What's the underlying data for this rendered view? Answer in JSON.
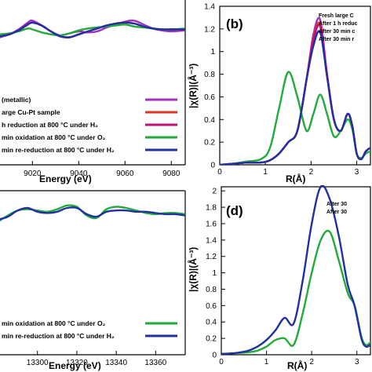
{
  "chart_data": [
    {
      "panel": "a",
      "type": "line",
      "xlabel": "Energy (eV)",
      "x_ticks": [
        9020,
        9040,
        9060,
        9080
      ],
      "xlim": [
        9006,
        9086
      ],
      "ylim": [
        0,
        1.6
      ],
      "legend_position": "bottom-right",
      "legend": [
        {
          "label": "(metallic)",
          "color": "#a030c0"
        },
        {
          "label": "arge Cu-Pt sample",
          "color": "#e0301e"
        },
        {
          "label": "h reduction at 800 °C under H₂",
          "color": "#c01078"
        },
        {
          "label": "min oxidation at 800 °C under O₂",
          "color": "#22aa3a"
        },
        {
          "label": "min re-reduction at 800 °C under H₂",
          "color": "#2030a0"
        }
      ],
      "series": [
        {
          "color": "#a030c0",
          "x": [
            9006,
            9010,
            9014,
            9018,
            9020,
            9024,
            9028,
            9032,
            9036,
            9040,
            9044,
            9048,
            9052,
            9056,
            9060,
            9064,
            9068,
            9072,
            9076,
            9080,
            9086
          ],
          "y": [
            1.3,
            1.33,
            1.38,
            1.45,
            1.47,
            1.42,
            1.36,
            1.32,
            1.34,
            1.36,
            1.35,
            1.36,
            1.4,
            1.43,
            1.46,
            1.47,
            1.43,
            1.39,
            1.37,
            1.36,
            1.37
          ]
        },
        {
          "color": "#e0301e",
          "x": [
            9006,
            9010,
            9014,
            9018,
            9020,
            9024,
            9028,
            9032,
            9036,
            9040,
            9044,
            9048,
            9052,
            9056,
            9060,
            9064,
            9068,
            9072,
            9076,
            9080,
            9086
          ],
          "y": [
            1.31,
            1.33,
            1.37,
            1.43,
            1.45,
            1.42,
            1.36,
            1.31,
            1.3,
            1.33,
            1.36,
            1.39,
            1.42,
            1.44,
            1.45,
            1.44,
            1.41,
            1.39,
            1.38,
            1.38,
            1.38
          ]
        },
        {
          "color": "#c01078",
          "x": [
            9006,
            9010,
            9014,
            9018,
            9020,
            9024,
            9028,
            9032,
            9036,
            9040,
            9044,
            9048,
            9052,
            9056,
            9060,
            9064,
            9068,
            9072,
            9076,
            9080,
            9086
          ],
          "y": [
            1.31,
            1.33,
            1.37,
            1.43,
            1.45,
            1.42,
            1.36,
            1.31,
            1.3,
            1.33,
            1.36,
            1.39,
            1.42,
            1.44,
            1.45,
            1.44,
            1.41,
            1.39,
            1.38,
            1.38,
            1.38
          ]
        },
        {
          "color": "#22aa3a",
          "x": [
            9006,
            9010,
            9014,
            9018,
            9020,
            9024,
            9028,
            9032,
            9036,
            9040,
            9044,
            9048,
            9052,
            9056,
            9060,
            9064,
            9068,
            9072,
            9076,
            9080,
            9086
          ],
          "y": [
            1.33,
            1.34,
            1.36,
            1.39,
            1.38,
            1.35,
            1.33,
            1.32,
            1.34,
            1.37,
            1.39,
            1.4,
            1.41,
            1.42,
            1.43,
            1.41,
            1.4,
            1.39,
            1.38,
            1.38,
            1.39
          ]
        },
        {
          "color": "#2030a0",
          "x": [
            9006,
            9010,
            9014,
            9018,
            9020,
            9024,
            9028,
            9032,
            9036,
            9040,
            9044,
            9048,
            9052,
            9056,
            9060,
            9064,
            9068,
            9072,
            9076,
            9080,
            9086
          ],
          "y": [
            1.31,
            1.33,
            1.37,
            1.43,
            1.45,
            1.42,
            1.36,
            1.31,
            1.3,
            1.33,
            1.36,
            1.39,
            1.42,
            1.44,
            1.45,
            1.44,
            1.41,
            1.39,
            1.38,
            1.38,
            1.38
          ]
        }
      ]
    },
    {
      "panel": "b",
      "type": "line",
      "label": "(b)",
      "xlabel": "R(Å)",
      "ylabel": "|χ(R)|(Å⁻³)",
      "x_ticks": [
        "0",
        "1",
        "2",
        "3"
      ],
      "x_tick_values": [
        0,
        1,
        2,
        3
      ],
      "y_ticks": [
        "0",
        "0.2",
        "0.4",
        "0.6",
        "0.8",
        "1",
        "1.2",
        "1.4"
      ],
      "y_tick_values": [
        0,
        0.2,
        0.4,
        0.6,
        0.8,
        1.0,
        1.2,
        1.4
      ],
      "xlim": [
        0,
        3.3
      ],
      "ylim": [
        0,
        1.4
      ],
      "legend_position": "top-right",
      "legend": [
        "Fresh large C",
        "After 1 h reduc",
        "After 30 min c",
        "After 30 min r"
      ],
      "series": [
        {
          "color": "#a030c0",
          "x": [
            0,
            0.3,
            0.6,
            0.9,
            1.1,
            1.3,
            1.5,
            1.7,
            1.9,
            2.05,
            2.2,
            2.35,
            2.5,
            2.65,
            2.8,
            2.9,
            3.0,
            3.1,
            3.2,
            3.3
          ],
          "y": [
            0,
            0.01,
            0.02,
            0.02,
            0.04,
            0.1,
            0.2,
            0.3,
            0.75,
            1.15,
            1.28,
            0.8,
            0.4,
            0.3,
            0.45,
            0.35,
            0.1,
            0.05,
            0.12,
            0.15
          ]
        },
        {
          "color": "#e0301e",
          "x": [
            0,
            0.3,
            0.6,
            0.9,
            1.1,
            1.3,
            1.5,
            1.7,
            1.9,
            2.05,
            2.2,
            2.35,
            2.5,
            2.65,
            2.8,
            2.9,
            3.0,
            3.1,
            3.2,
            3.3
          ],
          "y": [
            0,
            0.01,
            0.02,
            0.02,
            0.04,
            0.1,
            0.2,
            0.3,
            0.75,
            1.12,
            1.24,
            0.8,
            0.4,
            0.3,
            0.45,
            0.35,
            0.1,
            0.05,
            0.12,
            0.15
          ]
        },
        {
          "color": "#c01078",
          "x": [
            0,
            0.3,
            0.6,
            0.9,
            1.1,
            1.3,
            1.5,
            1.7,
            1.9,
            2.05,
            2.2,
            2.35,
            2.5,
            2.65,
            2.8,
            2.9,
            3.0,
            3.1,
            3.2,
            3.3
          ],
          "y": [
            0,
            0.01,
            0.02,
            0.02,
            0.04,
            0.1,
            0.2,
            0.3,
            0.75,
            1.1,
            1.22,
            0.8,
            0.4,
            0.3,
            0.45,
            0.35,
            0.1,
            0.05,
            0.12,
            0.15
          ]
        },
        {
          "color": "#22aa3a",
          "x": [
            0,
            0.3,
            0.6,
            0.9,
            1.1,
            1.3,
            1.5,
            1.7,
            1.9,
            2.05,
            2.2,
            2.35,
            2.5,
            2.65,
            2.8,
            2.9,
            3.0,
            3.1,
            3.2,
            3.3
          ],
          "y": [
            0,
            0.01,
            0.03,
            0.05,
            0.15,
            0.5,
            0.82,
            0.6,
            0.3,
            0.45,
            0.62,
            0.45,
            0.25,
            0.3,
            0.4,
            0.32,
            0.1,
            0.06,
            0.1,
            0.12
          ]
        },
        {
          "color": "#2030a0",
          "x": [
            0,
            0.3,
            0.6,
            0.9,
            1.1,
            1.3,
            1.5,
            1.7,
            1.9,
            2.05,
            2.2,
            2.35,
            2.5,
            2.65,
            2.8,
            2.9,
            3.0,
            3.1,
            3.2,
            3.3
          ],
          "y": [
            0,
            0.01,
            0.02,
            0.02,
            0.04,
            0.1,
            0.2,
            0.3,
            0.75,
            1.05,
            1.17,
            0.78,
            0.4,
            0.3,
            0.45,
            0.35,
            0.1,
            0.05,
            0.12,
            0.15
          ]
        }
      ]
    },
    {
      "panel": "c",
      "type": "line",
      "xlabel": "Energy (eV)",
      "x_ticks": [
        13300,
        13320,
        13340,
        13360
      ],
      "xlim": [
        13281,
        13375
      ],
      "ylim": [
        0,
        1.3
      ],
      "legend_position": "bottom-right",
      "legend": [
        {
          "label": "min oxidation at 800 °C under O₂",
          "color": "#22aa3a"
        },
        {
          "label": "min re-reduction at 800 °C under H₂",
          "color": "#2030a0"
        }
      ],
      "series": [
        {
          "color": "#22aa3a",
          "x": [
            13281,
            13285,
            13290,
            13295,
            13300,
            13305,
            13310,
            13315,
            13320,
            13325,
            13330,
            13335,
            13340,
            13345,
            13350,
            13355,
            13360,
            13365,
            13370,
            13375
          ],
          "y": [
            1.08,
            1.12,
            1.16,
            1.17,
            1.16,
            1.15,
            1.17,
            1.2,
            1.19,
            1.12,
            1.1,
            1.17,
            1.19,
            1.18,
            1.16,
            1.14,
            1.13,
            1.14,
            1.14,
            1.13
          ]
        },
        {
          "color": "#2030a0",
          "x": [
            13281,
            13285,
            13290,
            13295,
            13300,
            13305,
            13310,
            13315,
            13320,
            13325,
            13330,
            13335,
            13340,
            13345,
            13350,
            13355,
            13360,
            13365,
            13370,
            13375
          ],
          "y": [
            1.09,
            1.11,
            1.16,
            1.18,
            1.15,
            1.14,
            1.15,
            1.18,
            1.18,
            1.13,
            1.11,
            1.15,
            1.16,
            1.16,
            1.15,
            1.15,
            1.14,
            1.13,
            1.13,
            1.12
          ]
        }
      ]
    },
    {
      "panel": "d",
      "type": "line",
      "label": "(d)",
      "xlabel": "R(Å)",
      "ylabel": "|χ(R)|(Å⁻³)",
      "x_ticks": [
        "0",
        "1",
        "2",
        "3"
      ],
      "x_tick_values": [
        0,
        1,
        2,
        3
      ],
      "y_ticks": [
        "0",
        "0.2",
        "0.4",
        "0.6",
        "0.8",
        "1",
        "1.2",
        "1.4",
        "1.6",
        "1.8",
        "2"
      ],
      "y_tick_values": [
        0,
        0.2,
        0.4,
        0.6,
        0.8,
        1.0,
        1.2,
        1.4,
        1.6,
        1.8,
        2.0
      ],
      "xlim": [
        0,
        3.3
      ],
      "ylim": [
        0,
        2.05
      ],
      "legend_position": "top-right",
      "legend": [
        "After 30",
        "After 30"
      ],
      "series": [
        {
          "color": "#22aa3a",
          "x": [
            0,
            0.3,
            0.6,
            0.8,
            1.0,
            1.2,
            1.4,
            1.6,
            1.8,
            2.0,
            2.2,
            2.4,
            2.6,
            2.8,
            2.95,
            3.1,
            3.2,
            3.3
          ],
          "y": [
            0.01,
            0.02,
            0.03,
            0.05,
            0.1,
            0.18,
            0.2,
            0.12,
            0.5,
            1.0,
            1.4,
            1.5,
            1.15,
            0.75,
            0.6,
            0.22,
            0.12,
            0.15
          ]
        },
        {
          "color": "#2030a0",
          "x": [
            0,
            0.3,
            0.6,
            0.8,
            1.0,
            1.2,
            1.4,
            1.6,
            1.8,
            2.0,
            2.2,
            2.4,
            2.6,
            2.8,
            2.95,
            3.1,
            3.2,
            3.3
          ],
          "y": [
            0.01,
            0.02,
            0.05,
            0.1,
            0.18,
            0.3,
            0.45,
            0.38,
            0.9,
            1.6,
            2.05,
            1.9,
            1.45,
            0.85,
            0.6,
            0.2,
            0.1,
            0.12
          ]
        }
      ]
    }
  ]
}
